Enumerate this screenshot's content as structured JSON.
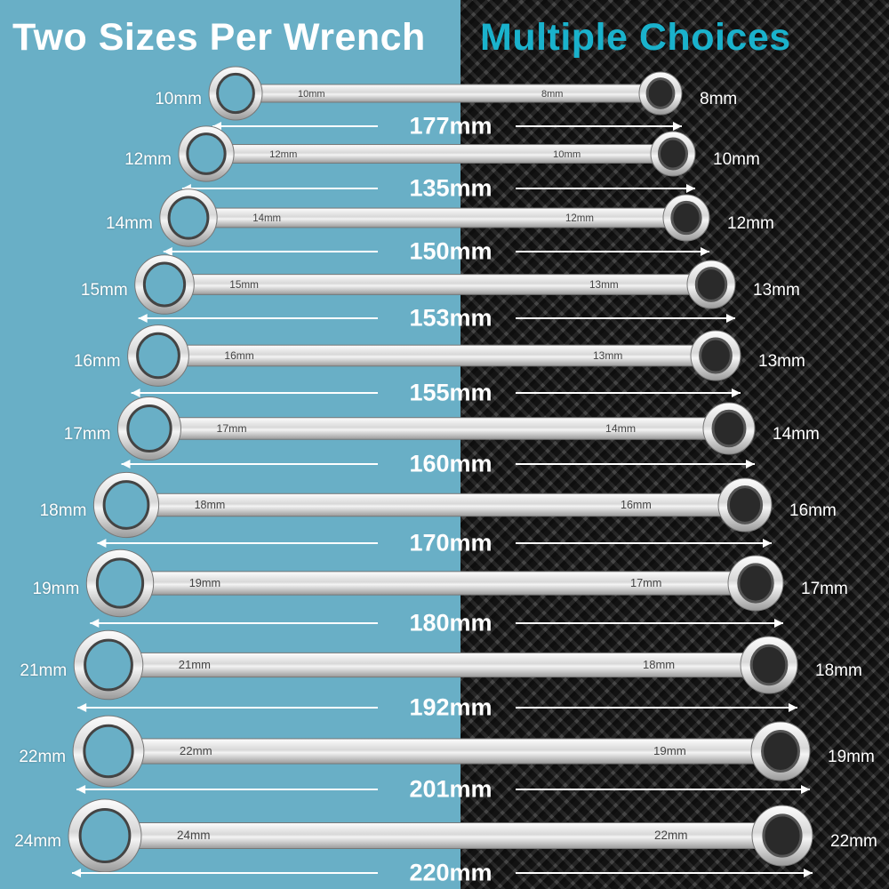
{
  "header": {
    "title_left": "Two Sizes Per Wrench",
    "title_right": "Multiple Choices"
  },
  "colors": {
    "left_bg": "#69afc6",
    "right_bg": "#222222",
    "accent": "#1ab2cc"
  },
  "wrenches": [
    {
      "left": "10mm",
      "right": "8mm",
      "length": "177mm"
    },
    {
      "left": "12mm",
      "right": "10mm",
      "length": "135mm"
    },
    {
      "left": "14mm",
      "right": "12mm",
      "length": "150mm"
    },
    {
      "left": "15mm",
      "right": "13mm",
      "length": "153mm"
    },
    {
      "left": "16mm",
      "right": "13mm",
      "length": "155mm"
    },
    {
      "left": "17mm",
      "right": "14mm",
      "length": "160mm"
    },
    {
      "left": "18mm",
      "right": "16mm",
      "length": "170mm"
    },
    {
      "left": "19mm",
      "right": "17mm",
      "length": "180mm"
    },
    {
      "left": "21mm",
      "right": "18mm",
      "length": "192mm"
    },
    {
      "left": "22mm",
      "right": "19mm",
      "length": "201mm"
    },
    {
      "left": "24mm",
      "right": "22mm",
      "length": "220mm"
    }
  ]
}
